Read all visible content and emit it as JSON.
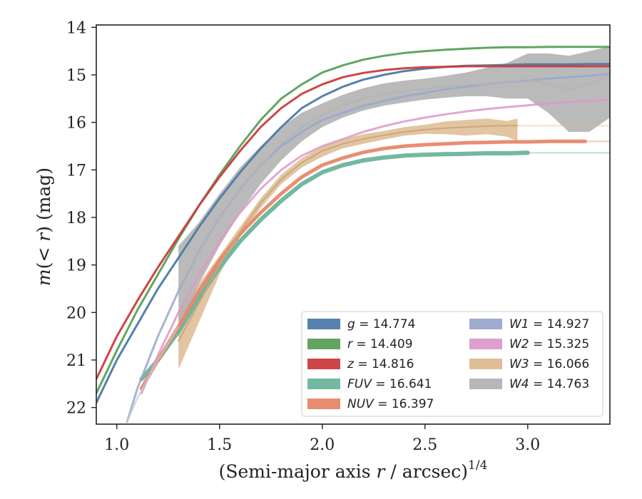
{
  "chart_data": {
    "type": "line",
    "title": "",
    "xlabel_main": "(Semi-major axis ",
    "xlabel_var": "r",
    "xlabel_tail": " / arcsec)",
    "xlabel_exp": "1/4",
    "ylabel_pre": "m(",
    "ylabel_var": "< r",
    "ylabel_post": ") (mag)",
    "xlim": [
      0.9,
      3.4
    ],
    "ylim": [
      22.35,
      13.95
    ],
    "y_inverted": true,
    "xticks": [
      1.0,
      1.5,
      2.0,
      2.5,
      3.0
    ],
    "xtick_labels": [
      "1.0",
      "1.5",
      "2.0",
      "2.5",
      "3.0"
    ],
    "yticks": [
      14,
      15,
      16,
      17,
      18,
      19,
      20,
      21,
      22
    ],
    "ytick_labels": [
      "14",
      "15",
      "16",
      "17",
      "18",
      "19",
      "20",
      "21",
      "22"
    ],
    "grid": false,
    "legend_position": "lower-right",
    "series": [
      {
        "key": "g",
        "label_var": "g",
        "label_val": " = 14.774",
        "color": "#4c7aa8",
        "x": [
          0.9,
          1.0,
          1.1,
          1.2,
          1.3,
          1.4,
          1.5,
          1.6,
          1.7,
          1.8,
          1.9,
          2.0,
          2.1,
          2.2,
          2.3,
          2.4,
          2.5,
          2.6,
          2.7,
          2.8,
          2.9,
          3.0,
          3.1,
          3.2,
          3.3,
          3.4
        ],
        "y": [
          21.9,
          21.0,
          20.25,
          19.5,
          18.85,
          18.2,
          17.6,
          17.05,
          16.55,
          16.1,
          15.7,
          15.45,
          15.25,
          15.1,
          15.0,
          14.92,
          14.87,
          14.83,
          14.81,
          14.8,
          14.79,
          14.78,
          14.78,
          14.78,
          14.77,
          14.77
        ],
        "width": 3
      },
      {
        "key": "r",
        "label_var": "r",
        "label_val": " = 14.409",
        "color": "#5aa05a",
        "x": [
          0.9,
          1.0,
          1.1,
          1.2,
          1.3,
          1.4,
          1.5,
          1.6,
          1.7,
          1.8,
          1.9,
          2.0,
          2.1,
          2.2,
          2.3,
          2.4,
          2.5,
          2.6,
          2.7,
          2.8,
          2.9,
          3.0,
          3.1,
          3.2,
          3.3,
          3.4
        ],
        "y": [
          21.7,
          20.8,
          19.95,
          19.2,
          18.45,
          17.75,
          17.1,
          16.5,
          15.95,
          15.5,
          15.2,
          14.95,
          14.8,
          14.68,
          14.6,
          14.54,
          14.5,
          14.47,
          14.45,
          14.43,
          14.42,
          14.42,
          14.41,
          14.41,
          14.41,
          14.41
        ],
        "width": 3
      },
      {
        "key": "z",
        "label_var": "z",
        "label_val": " = 14.816",
        "color": "#cc3b3b",
        "x": [
          0.9,
          1.0,
          1.1,
          1.2,
          1.3,
          1.4,
          1.5,
          1.6,
          1.7,
          1.8,
          1.9,
          2.0,
          2.1,
          2.2,
          2.3,
          2.4,
          2.5,
          2.6,
          2.7,
          2.8,
          2.9,
          3.0,
          3.1,
          3.2,
          3.3,
          3.4
        ],
        "y": [
          21.4,
          20.5,
          19.75,
          19.05,
          18.4,
          17.75,
          17.15,
          16.6,
          16.1,
          15.7,
          15.4,
          15.2,
          15.05,
          14.96,
          14.9,
          14.86,
          14.84,
          14.83,
          14.82,
          14.82,
          14.82,
          14.82,
          14.82,
          14.82,
          14.82,
          14.82
        ],
        "width": 3
      },
      {
        "key": "FUV",
        "label_var": "FUV",
        "label_val": " = 16.641",
        "color": "#6cb49c",
        "x": [
          1.12,
          1.2,
          1.3,
          1.4,
          1.5,
          1.6,
          1.7,
          1.8,
          1.9,
          2.0,
          2.1,
          2.2,
          2.3,
          2.4,
          2.5,
          2.6,
          2.7,
          2.8,
          2.9,
          3.0
        ],
        "y": [
          21.4,
          21.0,
          20.4,
          19.7,
          19.05,
          18.5,
          18.05,
          17.65,
          17.3,
          17.05,
          16.9,
          16.8,
          16.74,
          16.7,
          16.68,
          16.67,
          16.66,
          16.65,
          16.65,
          16.64
        ],
        "width": 6,
        "faint_to": 3.4,
        "faint_y": 16.64
      },
      {
        "key": "NUV",
        "label_var": "NUV",
        "label_val": " = 16.397",
        "color": "#e8876a",
        "x": [
          1.12,
          1.2,
          1.3,
          1.4,
          1.5,
          1.6,
          1.7,
          1.8,
          1.9,
          2.0,
          2.1,
          2.2,
          2.3,
          2.4,
          2.5,
          2.6,
          2.7,
          2.8,
          2.9,
          3.0,
          3.1,
          3.2,
          3.28
        ],
        "y": [
          21.6,
          21.0,
          20.3,
          19.55,
          18.9,
          18.35,
          17.9,
          17.5,
          17.15,
          16.9,
          16.75,
          16.63,
          16.55,
          16.5,
          16.47,
          16.45,
          16.43,
          16.42,
          16.41,
          16.41,
          16.4,
          16.4,
          16.4
        ],
        "width": 5,
        "faint_to": 3.4,
        "faint_y": 16.4
      },
      {
        "key": "W1",
        "label_var": "W1",
        "label_val": " = 14.927",
        "color": "#98a8cc",
        "x": [
          1.05,
          1.1,
          1.2,
          1.3,
          1.4,
          1.5,
          1.6,
          1.7,
          1.8,
          1.9,
          2.0,
          2.1,
          2.2,
          2.3,
          2.4,
          2.5,
          2.6,
          2.7,
          2.8,
          2.9,
          3.0,
          3.1,
          3.2,
          3.3,
          3.4
        ],
        "y": [
          22.3,
          21.6,
          20.5,
          19.55,
          18.7,
          18.0,
          17.4,
          16.9,
          16.5,
          16.2,
          15.95,
          15.8,
          15.65,
          15.55,
          15.45,
          15.38,
          15.3,
          15.25,
          15.2,
          15.15,
          15.12,
          15.08,
          15.05,
          15.02,
          14.98
        ],
        "width": 3
      },
      {
        "key": "W2",
        "label_var": "W2",
        "label_val": " = 15.325",
        "color": "#dd99c8",
        "x": [
          1.12,
          1.2,
          1.3,
          1.4,
          1.5,
          1.6,
          1.7,
          1.8,
          1.9,
          2.0,
          2.1,
          2.2,
          2.3,
          2.4,
          2.5,
          2.6,
          2.7,
          2.8,
          2.9,
          3.0,
          3.1,
          3.2,
          3.3,
          3.4
        ],
        "y": [
          21.7,
          20.9,
          20.0,
          19.2,
          18.5,
          17.9,
          17.4,
          17.0,
          16.7,
          16.5,
          16.35,
          16.2,
          16.08,
          15.98,
          15.9,
          15.83,
          15.77,
          15.72,
          15.68,
          15.64,
          15.6,
          15.57,
          15.55,
          15.53
        ],
        "width": 3
      },
      {
        "key": "W3",
        "label_var": "W3",
        "label_val": " = 16.066",
        "color": "#ddbb90",
        "x": [
          1.3,
          1.4,
          1.5,
          1.6,
          1.7,
          1.8,
          1.9,
          2.0,
          2.1,
          2.2,
          2.3,
          2.4,
          2.5,
          2.6,
          2.7,
          2.8,
          2.9,
          2.95
        ],
        "y": [
          20.6,
          19.8,
          19.0,
          18.3,
          17.7,
          17.2,
          16.85,
          16.6,
          16.45,
          16.35,
          16.27,
          16.2,
          16.15,
          16.12,
          16.1,
          16.08,
          16.07,
          16.07
        ],
        "band_lower": [
          21.2,
          20.2,
          19.2,
          18.4,
          17.8,
          17.3,
          16.95,
          16.72,
          16.55,
          16.45,
          16.36,
          16.28,
          16.24,
          16.25,
          16.28,
          16.25,
          16.3,
          16.4
        ],
        "band_upper": [
          20.0,
          19.4,
          18.8,
          18.2,
          17.6,
          17.1,
          16.75,
          16.5,
          16.35,
          16.25,
          16.18,
          16.1,
          16.05,
          15.98,
          15.95,
          15.92,
          15.97,
          15.92
        ],
        "width": 2,
        "faint_to": 3.4,
        "faint_y": 16.07
      },
      {
        "key": "W4",
        "label_var": "W4",
        "label_val": " = 14.763",
        "color": "#b3b3b3",
        "x": [
          1.3,
          1.4,
          1.5,
          1.6,
          1.7,
          1.8,
          1.9,
          2.0,
          2.1,
          2.2,
          2.3,
          2.4,
          2.5,
          2.6,
          2.7,
          2.8,
          2.9,
          3.0,
          3.1,
          3.2,
          3.3,
          3.4
        ],
        "y": [
          19.5,
          18.7,
          18.0,
          17.4,
          16.9,
          16.45,
          16.1,
          15.85,
          15.65,
          15.5,
          15.4,
          15.35,
          15.3,
          15.25,
          15.2,
          15.2,
          15.15,
          15.1,
          15.2,
          15.3,
          15.2,
          15.0
        ],
        "band_lower": [
          20.5,
          19.4,
          18.6,
          17.9,
          17.3,
          16.8,
          16.4,
          16.1,
          15.9,
          15.75,
          15.65,
          15.58,
          15.52,
          15.48,
          15.45,
          15.45,
          15.5,
          15.5,
          15.8,
          16.2,
          16.2,
          15.9
        ],
        "band_upper": [
          18.6,
          18.1,
          17.5,
          16.95,
          16.5,
          16.1,
          15.8,
          15.6,
          15.42,
          15.28,
          15.18,
          15.12,
          15.08,
          15.02,
          14.95,
          14.85,
          14.75,
          14.55,
          14.55,
          14.6,
          14.5,
          14.4
        ],
        "width": 2
      },
      {
        "key": "faint_extra",
        "label_var": "",
        "label_val": "",
        "color": "#c8c8c8",
        "hidden_legend": true,
        "x": [
          1.05,
          1.1,
          1.2,
          1.3
        ],
        "y": [
          22.3,
          21.8,
          21.0,
          20.3
        ],
        "width": 2
      }
    ]
  }
}
